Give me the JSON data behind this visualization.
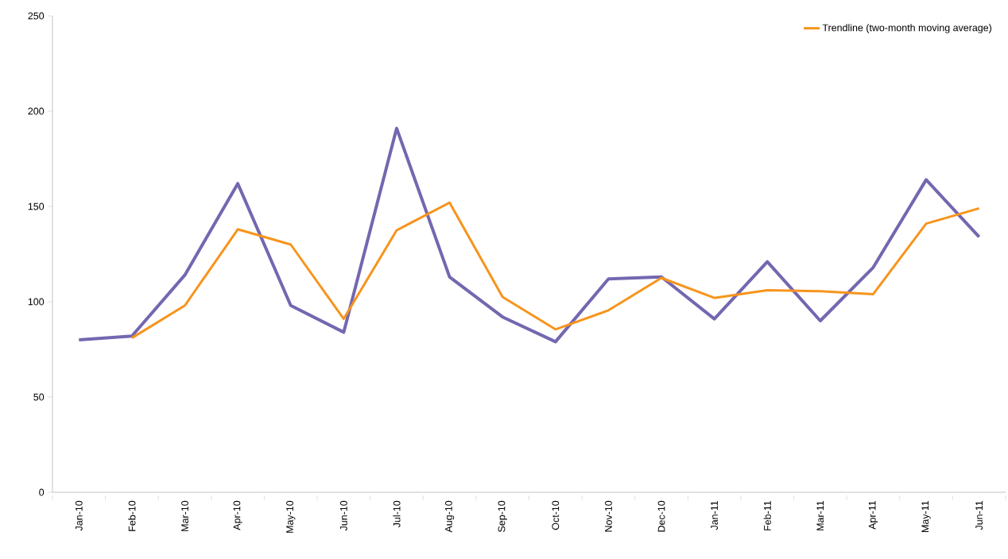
{
  "chart_data": {
    "type": "line",
    "categories": [
      "Jan-10",
      "Feb-10",
      "Mar-10",
      "Apr-10",
      "May-10",
      "Jun-10",
      "Jul-10",
      "Aug-10",
      "Sep-10",
      "Oct-10",
      "Nov-10",
      "Dec-10",
      "Jan-11",
      "Feb-11",
      "Mar-11",
      "Apr-11",
      "May-11",
      "Jun-11"
    ],
    "series": [
      {
        "color": "#7467b0",
        "values": [
          80,
          82,
          114,
          162,
          98,
          84,
          191,
          113,
          92,
          79,
          112,
          113,
          91,
          121,
          90,
          118,
          164,
          134
        ]
      },
      {
        "name": "Trendline (two-month moving average)",
        "color": "#f7941d",
        "values": [
          null,
          81,
          98,
          138,
          130,
          91,
          137.5,
          152,
          102.5,
          85.5,
          95.5,
          112.5,
          102,
          106,
          105.5,
          104,
          141,
          149
        ]
      }
    ],
    "ylim": [
      0,
      250
    ],
    "yticks": [
      0,
      50,
      100,
      150,
      200,
      250
    ],
    "legend": "top right",
    "marker": "none",
    "line_style": "solid"
  }
}
